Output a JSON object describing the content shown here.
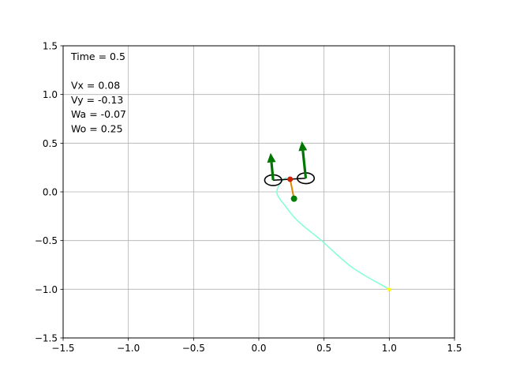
{
  "chart_data": {
    "type": "scatter",
    "title": "",
    "xlabel": "",
    "ylabel": "",
    "xlim": [
      -1.5,
      1.5
    ],
    "ylim": [
      -1.5,
      1.5
    ],
    "grid": true,
    "x_ticks": [
      -1.5,
      -1.0,
      -0.5,
      0.0,
      0.5,
      1.0,
      1.5
    ],
    "y_ticks": [
      -1.5,
      -1.0,
      -0.5,
      0.0,
      0.5,
      1.0,
      1.5
    ],
    "x_tick_labels": [
      "−1.5",
      "−1.0",
      "−0.5",
      "0.0",
      "0.5",
      "1.0",
      "1.5"
    ],
    "y_tick_labels": [
      "−1.5",
      "−1.0",
      "−0.5",
      "0.0",
      "0.5",
      "1.0",
      "1.5"
    ],
    "info_lines": [
      "Time = 0.5",
      "",
      "Vx = 0.08",
      "Vy = -0.13",
      "Wa = -0.07",
      "Wo = 0.25"
    ],
    "trajectory": {
      "color": "#7fffd4",
      "points": [
        [
          1.0,
          -1.0
        ],
        [
          0.72,
          -0.78
        ],
        [
          0.48,
          -0.5
        ],
        [
          0.3,
          -0.3
        ],
        [
          0.2,
          -0.14
        ],
        [
          0.14,
          -0.02
        ],
        [
          0.16,
          0.08
        ],
        [
          0.21,
          0.15
        ]
      ]
    },
    "start_marker": {
      "x": 1.0,
      "y": -1.0,
      "color": "#ffff00"
    },
    "center": {
      "x": 0.24,
      "y": 0.13,
      "color": "#cc2200"
    },
    "target": {
      "x": 0.27,
      "y": -0.07,
      "color": "#008000"
    },
    "link_color": "#e08800",
    "axle_color": "#000000",
    "wheels": [
      {
        "x": 0.11,
        "y": 0.12,
        "width": 0.13,
        "height": 0.11
      },
      {
        "x": 0.36,
        "y": 0.14,
        "width": 0.13,
        "height": 0.11
      }
    ],
    "velocity_arrows": [
      {
        "x": 0.11,
        "y": 0.12,
        "dx": -0.02,
        "dy": 0.28,
        "color": "#007700"
      },
      {
        "x": 0.36,
        "y": 0.14,
        "dx": -0.03,
        "dy": 0.38,
        "color": "#007700"
      }
    ],
    "tick_color": "#000000",
    "grid_color": "#b0b0b0",
    "frame_color": "#000000"
  }
}
